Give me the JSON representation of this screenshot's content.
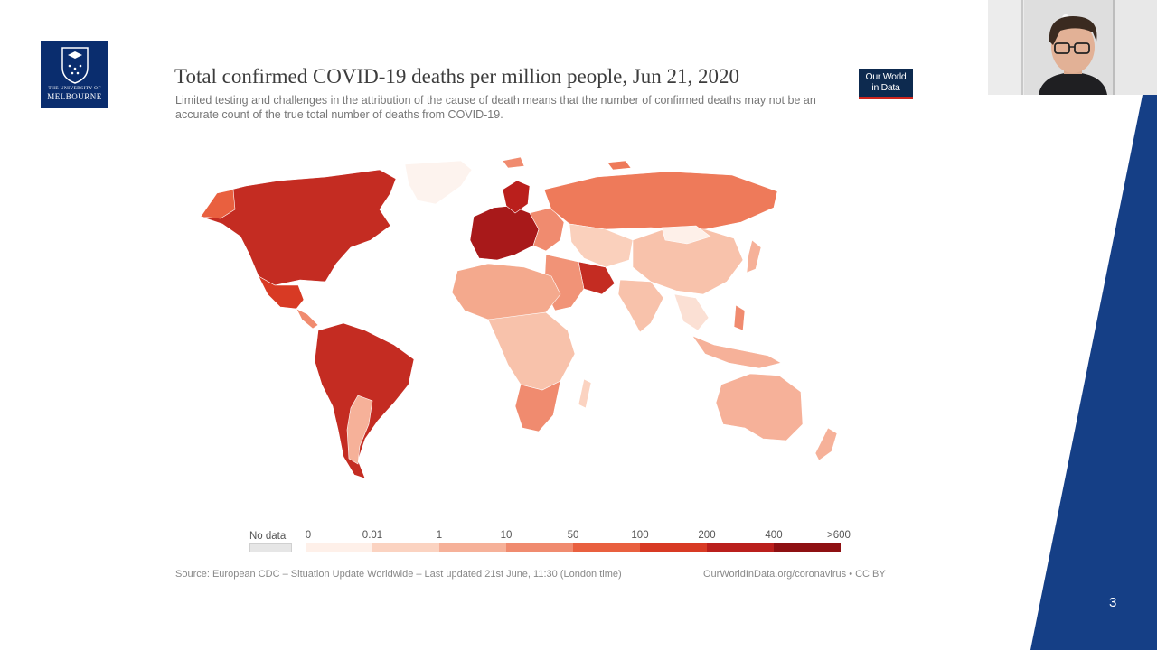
{
  "university": {
    "line1": "THE UNIVERSITY OF",
    "line2": "MELBOURNE",
    "color": "#0a2d6e"
  },
  "chart": {
    "title": "Total confirmed COVID-19 deaths per million people, Jun 21, 2020",
    "subtitle": "Limited testing and challenges in the attribution of the cause of death means that the number of confirmed deaths may not be an accurate count of the true total number of deaths from COVID-19.",
    "source": "Source: European CDC – Situation Update Worldwide – Last updated 21st June, 11:30 (London time)",
    "credit": "OurWorldInData.org/coronavirus • CC BY"
  },
  "owid_logo": {
    "line1": "Our World",
    "line2": "in Data"
  },
  "legend": {
    "no_data_label": "No data",
    "no_data_color": "#e6e6e6",
    "ticks": [
      "0",
      "0.01",
      "1",
      "10",
      "50",
      "100",
      "200",
      "400",
      ">600"
    ],
    "colors": [
      "#fef0e9",
      "#fbd3c1",
      "#f6b199",
      "#f08b6f",
      "#e9603f",
      "#d83a24",
      "#ba1f1c",
      "#8e1012"
    ]
  },
  "slide": {
    "page_number": "3",
    "accent_color": "#153f86"
  }
}
